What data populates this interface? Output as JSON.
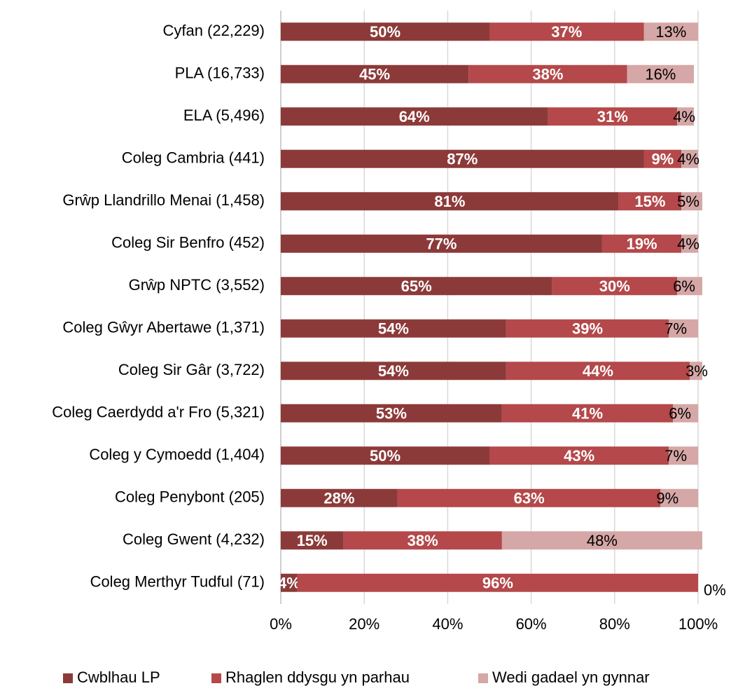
{
  "chart_data": {
    "type": "stacked-bar-horizontal",
    "categories": [
      "Cyfan (22,229)",
      "PLA (16,733)",
      "ELA (5,496)",
      "Coleg Cambria (441)",
      "Grŵp Llandrillo Menai (1,458)",
      "Coleg Sir Benfro (452)",
      "Grŵp NPTC (3,552)",
      "Coleg Gŵyr Abertawe (1,371)",
      "Coleg Sir Gâr (3,722)",
      "Coleg Caerdydd a'r Fro (5,321)",
      "Coleg y Cymoedd (1,404)",
      "Coleg Penybont (205)",
      "Coleg Gwent (4,232)",
      "Coleg Merthyr Tudful (71)"
    ],
    "series": [
      {
        "name": "Cwblhau LP",
        "color": "#8c3a39",
        "values": [
          50,
          45,
          64,
          87,
          81,
          77,
          65,
          54,
          54,
          53,
          50,
          28,
          15,
          4
        ],
        "value_labels": [
          "50%",
          "45%",
          "64%",
          "87%",
          "81%",
          "77%",
          "65%",
          "54%",
          "54%",
          "53%",
          "50%",
          "28%",
          "15%",
          "4%"
        ]
      },
      {
        "name": "Rhaglen ddysgu yn parhau",
        "color": "#b4484a",
        "values": [
          37,
          38,
          31,
          9,
          15,
          19,
          30,
          39,
          44,
          41,
          43,
          63,
          38,
          96
        ],
        "value_labels": [
          "37%",
          "38%",
          "31%",
          "9%",
          "15%",
          "19%",
          "30%",
          "39%",
          "44%",
          "41%",
          "43%",
          "63%",
          "38%",
          "96%"
        ]
      },
      {
        "name": "Wedi gadael yn gynnar",
        "color": "#d5a7a6",
        "values": [
          13,
          16,
          4,
          4,
          5,
          4,
          6,
          7,
          3,
          6,
          7,
          9,
          48,
          0
        ],
        "value_labels": [
          "13%",
          "16%",
          "4%",
          "4%",
          "5%",
          "4%",
          "6%",
          "7%",
          "3%",
          "6%",
          "7%",
          "9%",
          "48%",
          "0%"
        ]
      }
    ],
    "xlim": [
      0,
      100
    ],
    "xticks": [
      {
        "value": 0,
        "label": "0%"
      },
      {
        "value": 20,
        "label": "20%"
      },
      {
        "value": 40,
        "label": "40%"
      },
      {
        "value": 60,
        "label": "60%"
      },
      {
        "value": 80,
        "label": "80%"
      },
      {
        "value": 100,
        "label": "100%"
      }
    ],
    "grid": true,
    "legend": "bottom"
  }
}
